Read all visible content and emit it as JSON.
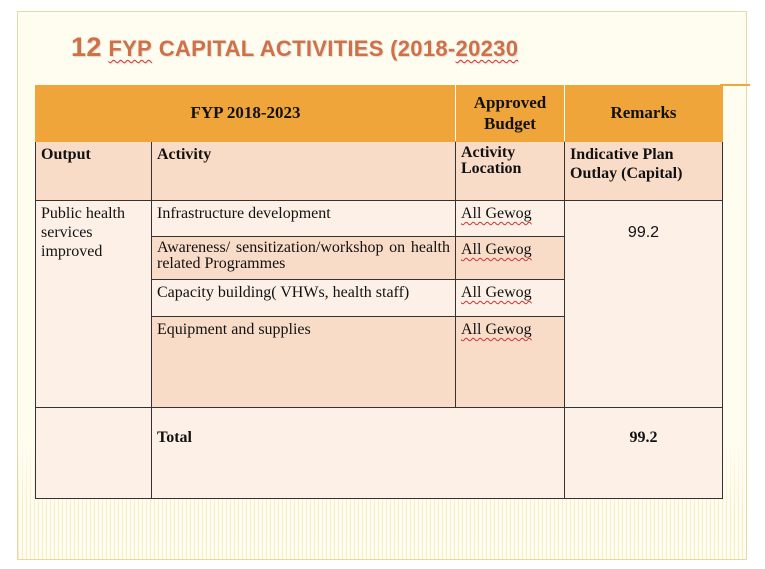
{
  "title": {
    "number": "12",
    "word1": "FYP",
    "rest": "CAPITAL  ACTIVITIES (2018-",
    "year_end": "20230"
  },
  "table": {
    "header": {
      "plan": "FYP 2018-2023",
      "approved_budget": "Approved Budget",
      "remarks": "Remarks"
    },
    "subheader": {
      "output": "Output",
      "activity": "Activity",
      "location": "Activity Location",
      "outlay": "Indicative Plan Outlay (Capital)"
    },
    "output_value": "Public health services improved",
    "rows": [
      {
        "activity": "Infrastructure development",
        "location": "All Gewog"
      },
      {
        "activity": "Awareness/ sensitization/workshop  on health related Programmes",
        "location": "All Gewog"
      },
      {
        "activity": "Capacity building( VHWs, health staff)",
        "location": "All Gewog"
      },
      {
        "activity": "Equipment and supplies",
        "location": "All Gewog"
      }
    ],
    "outlay_value": "99.2",
    "total_label": "Total",
    "total_value": "99.2"
  }
}
